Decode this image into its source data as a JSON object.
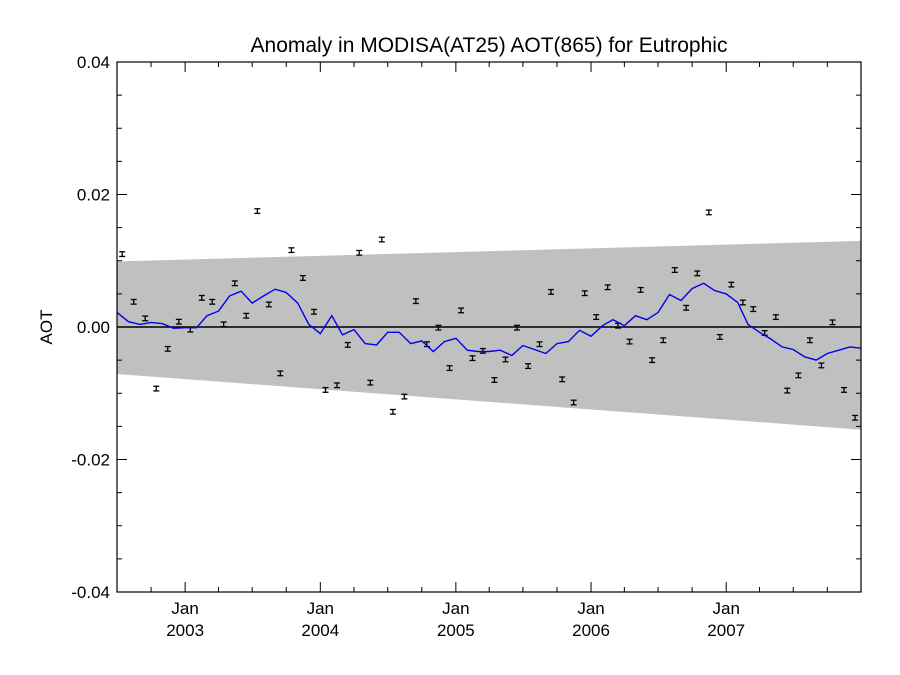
{
  "chart_data": {
    "type": "scatter",
    "title": "Anomaly in MODISA(AT25) AOT(865) for Eutrophic",
    "ylabel": "AOT",
    "xlabel": "",
    "xlim": [
      "2002-07-01",
      "2007-12-31"
    ],
    "ylim": [
      -0.04,
      0.04
    ],
    "grid": false,
    "y_ticks": [
      {
        "value": 0.04,
        "label": "0.04"
      },
      {
        "value": 0.02,
        "label": "0.02"
      },
      {
        "value": 0.0,
        "label": "0.00"
      },
      {
        "value": -0.02,
        "label": "-0.02"
      },
      {
        "value": -0.04,
        "label": "-0.04"
      }
    ],
    "x_ticks": [
      {
        "date": "2003-01-01",
        "month": "Jan",
        "year": "2003"
      },
      {
        "date": "2004-01-01",
        "month": "Jan",
        "year": "2004"
      },
      {
        "date": "2005-01-01",
        "month": "Jan",
        "year": "2005"
      },
      {
        "date": "2006-01-01",
        "month": "Jan",
        "year": "2006"
      },
      {
        "date": "2007-01-01",
        "month": "Jan",
        "year": "2007"
      }
    ],
    "band": {
      "color": "#c0c0c0",
      "start_date": "2002-07-01",
      "end_date": "2007-12-31",
      "start_upper": 0.0099,
      "start_lower": -0.0071,
      "end_upper": 0.013,
      "end_lower": -0.0155
    },
    "zero_line": {
      "value": 0.0,
      "color": "#000000"
    },
    "series": [
      {
        "kind": "points_with_errorbars",
        "color": "#000000",
        "error": 0.0002,
        "x": [
          "2002-07-15",
          "2002-08-15",
          "2002-09-15",
          "2002-10-15",
          "2002-11-15",
          "2002-12-15",
          "2003-01-15",
          "2003-02-15",
          "2003-03-15",
          "2003-04-15",
          "2003-05-15",
          "2003-06-15",
          "2003-07-15",
          "2003-08-15",
          "2003-09-15",
          "2003-10-15",
          "2003-11-15",
          "2003-12-15",
          "2004-01-15",
          "2004-02-15",
          "2004-03-15",
          "2004-04-15",
          "2004-05-15",
          "2004-06-15",
          "2004-07-15",
          "2004-08-15",
          "2004-09-15",
          "2004-10-15",
          "2004-11-15",
          "2004-12-15",
          "2005-01-15",
          "2005-02-15",
          "2005-03-15",
          "2005-04-15",
          "2005-05-15",
          "2005-06-15",
          "2005-07-15",
          "2005-08-15",
          "2005-09-15",
          "2005-10-15",
          "2005-11-15",
          "2005-12-15",
          "2006-01-15",
          "2006-02-15",
          "2006-03-15",
          "2006-04-15",
          "2006-05-15",
          "2006-06-15",
          "2006-07-15",
          "2006-08-15",
          "2006-09-15",
          "2006-10-15",
          "2006-11-15",
          "2006-12-15",
          "2007-01-15",
          "2007-02-15",
          "2007-03-15",
          "2007-04-15",
          "2007-05-15",
          "2007-06-15",
          "2007-07-15",
          "2007-08-15",
          "2007-09-15",
          "2007-10-15",
          "2007-11-15",
          "2007-12-15"
        ],
        "y": [
          0.011,
          0.0038,
          0.0013,
          -0.0093,
          -0.0033,
          0.0008,
          -0.0004,
          0.0044,
          0.0038,
          0.0004,
          0.0066,
          0.0017,
          0.0175,
          0.0034,
          -0.007,
          0.0116,
          0.0074,
          0.0023,
          -0.0095,
          -0.0088,
          -0.0027,
          0.0112,
          -0.0084,
          0.0132,
          -0.0128,
          -0.0105,
          0.0039,
          -0.0026,
          -0.0001,
          -0.0062,
          0.0025,
          -0.0047,
          -0.0036,
          -0.008,
          -0.0049,
          -0.0001,
          -0.0059,
          -0.0026,
          0.0053,
          -0.0079,
          -0.0114,
          0.0051,
          0.0015,
          0.006,
          0.0002,
          -0.0022,
          0.0056,
          -0.005,
          -0.002,
          0.0086,
          0.0029,
          0.0081,
          0.0173,
          -0.0015,
          0.0064,
          0.0037,
          0.0027,
          -0.0009,
          0.0015,
          -0.0096,
          -0.0073,
          -0.002,
          -0.0058,
          0.0007,
          -0.0095,
          -0.0137
        ]
      },
      {
        "kind": "line",
        "color": "#0000ee",
        "x": [
          "2002-07-01",
          "2002-08-01",
          "2002-09-01",
          "2002-10-01",
          "2002-11-01",
          "2002-12-01",
          "2003-01-01",
          "2003-02-01",
          "2003-03-01",
          "2003-04-01",
          "2003-05-01",
          "2003-06-01",
          "2003-07-01",
          "2003-08-01",
          "2003-09-01",
          "2003-10-01",
          "2003-11-01",
          "2003-12-01",
          "2004-01-01",
          "2004-02-01",
          "2004-03-01",
          "2004-04-01",
          "2004-05-01",
          "2004-06-01",
          "2004-07-01",
          "2004-08-01",
          "2004-09-01",
          "2004-10-01",
          "2004-11-01",
          "2004-12-01",
          "2005-01-01",
          "2005-02-01",
          "2005-03-01",
          "2005-04-01",
          "2005-05-01",
          "2005-06-01",
          "2005-07-01",
          "2005-08-01",
          "2005-09-01",
          "2005-10-01",
          "2005-11-01",
          "2005-12-01",
          "2006-01-01",
          "2006-02-01",
          "2006-03-01",
          "2006-04-01",
          "2006-05-01",
          "2006-06-01",
          "2006-07-01",
          "2006-08-01",
          "2006-09-01",
          "2006-10-01",
          "2006-11-01",
          "2006-12-01",
          "2007-01-01",
          "2007-02-01",
          "2007-03-01",
          "2007-04-01",
          "2007-05-01",
          "2007-06-01",
          "2007-07-01",
          "2007-08-01",
          "2007-09-01",
          "2007-10-01",
          "2007-11-01",
          "2007-12-01",
          "2007-12-31"
        ],
        "y": [
          0.0022,
          0.0008,
          0.0004,
          0.0007,
          0.0005,
          -0.0002,
          -0.0001,
          -0.0001,
          0.0017,
          0.0024,
          0.0047,
          0.0054,
          0.0036,
          0.0047,
          0.0057,
          0.0052,
          0.0036,
          0.0004,
          -0.001,
          0.0017,
          -0.0012,
          -0.0004,
          -0.0025,
          -0.0027,
          -0.0008,
          -0.0008,
          -0.0025,
          -0.0021,
          -0.0037,
          -0.0022,
          -0.0017,
          -0.0035,
          -0.0037,
          -0.0037,
          -0.0035,
          -0.0043,
          -0.0028,
          -0.0034,
          -0.004,
          -0.0025,
          -0.0022,
          -0.0005,
          -0.0014,
          0.0002,
          0.0011,
          0.0002,
          0.0017,
          0.0011,
          0.0022,
          0.0049,
          0.004,
          0.0058,
          0.0066,
          0.0055,
          0.005,
          0.0037,
          0.0004,
          -0.0008,
          -0.0018,
          -0.003,
          -0.0034,
          -0.0045,
          -0.005,
          -0.004,
          -0.0035,
          -0.003,
          -0.0032
        ]
      }
    ]
  }
}
